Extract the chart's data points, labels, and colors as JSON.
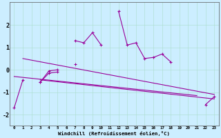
{
  "xlabel": "Windchill (Refroidissement éolien,°C)",
  "bg_color": "#cceeff",
  "line_color": "#990099",
  "x_data": [
    0,
    1,
    2,
    3,
    4,
    5,
    6,
    7,
    8,
    9,
    10,
    11,
    12,
    13,
    14,
    15,
    16,
    17,
    18,
    19,
    20,
    21,
    22,
    23
  ],
  "series_main": [
    -1.7,
    -0.45,
    null,
    -0.55,
    -0.15,
    -0.1,
    null,
    1.3,
    1.2,
    1.65,
    1.1,
    null,
    2.6,
    1.1,
    1.2,
    0.5,
    0.55,
    0.7,
    0.35,
    null,
    null,
    null,
    -1.55,
    -1.2
  ],
  "series_lower": [
    null,
    null,
    null,
    -0.55,
    -0.05,
    0.0,
    null,
    0.25,
    null,
    null,
    null,
    null,
    null,
    null,
    null,
    null,
    null,
    null,
    null,
    null,
    null,
    null,
    null,
    null
  ],
  "trend1_x": [
    1,
    23
  ],
  "trend1_y": [
    0.5,
    -1.1
  ],
  "trend2_x": [
    0,
    21
  ],
  "trend2_y": [
    -0.3,
    -1.15
  ],
  "trend3_x": [
    3,
    23
  ],
  "trend3_y": [
    -0.45,
    -1.3
  ],
  "xlim": [
    -0.5,
    23.5
  ],
  "ylim": [
    -2.5,
    3.0
  ],
  "yticks": [
    -2,
    -1,
    0,
    1,
    2
  ],
  "grid_color": "#aaddcc",
  "grid_alpha": 0.8
}
